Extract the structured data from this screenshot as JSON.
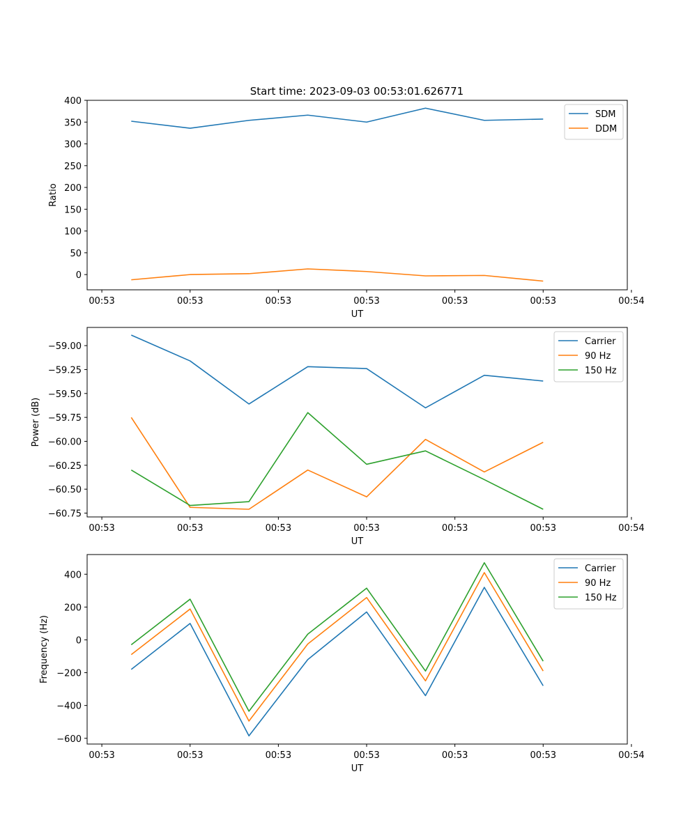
{
  "figure": {
    "title": "Start time: 2023-09-03 00:53:01.626771"
  },
  "chart_data": [
    {
      "type": "line",
      "title": "Start time: 2023-09-03 00:53:01.626771",
      "xlabel": "UT",
      "ylabel": "Ratio",
      "x": [
        1,
        2,
        3,
        4,
        5,
        6,
        7,
        8
      ],
      "xlim": [
        0.25,
        9.43
      ],
      "x_ticks": [
        0.5,
        2.0,
        3.5,
        5.0,
        6.5,
        8.0,
        9.5
      ],
      "x_tick_labels": [
        "00:53",
        "00:53",
        "00:53",
        "00:53",
        "00:53",
        "00:53",
        "00:54"
      ],
      "ylim": [
        -35,
        400
      ],
      "y_ticks": [
        0,
        50,
        100,
        150,
        200,
        250,
        300,
        350,
        400
      ],
      "y_tick_labels": [
        "0",
        "50",
        "100",
        "150",
        "200",
        "250",
        "300",
        "350",
        "400"
      ],
      "legend": "top-right",
      "series": [
        {
          "name": "SDM",
          "color": "#1f77b4",
          "values": [
            352,
            336,
            354,
            366,
            350,
            382,
            354,
            357
          ]
        },
        {
          "name": "DDM",
          "color": "#ff7f0e",
          "values": [
            -12,
            0,
            2,
            13,
            7,
            -3,
            -2,
            -15
          ]
        }
      ]
    },
    {
      "type": "line",
      "title": "",
      "xlabel": "UT",
      "ylabel": "Power (dB)",
      "x": [
        1,
        2,
        3,
        4,
        5,
        6,
        7,
        8
      ],
      "xlim": [
        0.25,
        9.43
      ],
      "x_ticks": [
        0.5,
        2.0,
        3.5,
        5.0,
        6.5,
        8.0,
        9.5
      ],
      "x_tick_labels": [
        "00:53",
        "00:53",
        "00:53",
        "00:53",
        "00:53",
        "00:53",
        "00:54"
      ],
      "ylim": [
        -60.79,
        -58.81
      ],
      "y_ticks": [
        -59.0,
        -59.25,
        -59.5,
        -59.75,
        -60.0,
        -60.25,
        -60.5,
        -60.75
      ],
      "y_tick_labels": [
        "−59.00",
        "−59.25",
        "−59.50",
        "−59.75",
        "−60.00",
        "−60.25",
        "−60.50",
        "−60.75"
      ],
      "legend": "top-right",
      "series": [
        {
          "name": "Carrier",
          "color": "#1f77b4",
          "values": [
            -58.89,
            -59.16,
            -59.61,
            -59.22,
            -59.24,
            -59.65,
            -59.31,
            -59.37
          ]
        },
        {
          "name": "90 Hz",
          "color": "#ff7f0e",
          "values": [
            -59.75,
            -60.69,
            -60.71,
            -60.3,
            -60.58,
            -59.98,
            -60.32,
            -60.01
          ]
        },
        {
          "name": "150 Hz",
          "color": "#2ca02c",
          "values": [
            -60.3,
            -60.67,
            -60.63,
            -59.7,
            -60.24,
            -60.1,
            -60.4,
            -60.71
          ]
        }
      ]
    },
    {
      "type": "line",
      "title": "",
      "xlabel": "UT",
      "ylabel": "Frequency (Hz)",
      "x": [
        1,
        2,
        3,
        4,
        5,
        6,
        7,
        8
      ],
      "xlim": [
        0.25,
        9.43
      ],
      "x_ticks": [
        0.5,
        2.0,
        3.5,
        5.0,
        6.5,
        8.0,
        9.5
      ],
      "x_tick_labels": [
        "00:53",
        "00:53",
        "00:53",
        "00:53",
        "00:53",
        "00:53",
        "00:54"
      ],
      "ylim": [
        -635,
        520
      ],
      "y_ticks": [
        -600,
        -400,
        -200,
        0,
        200,
        400
      ],
      "y_tick_labels": [
        "−600",
        "−400",
        "−200",
        "0",
        "200",
        "400"
      ],
      "legend": "top-right",
      "series": [
        {
          "name": "Carrier",
          "color": "#1f77b4",
          "values": [
            -180,
            100,
            -585,
            -120,
            170,
            -340,
            320,
            -280
          ]
        },
        {
          "name": "90 Hz",
          "color": "#ff7f0e",
          "values": [
            -90,
            188,
            -495,
            -25,
            258,
            -250,
            410,
            -190
          ]
        },
        {
          "name": "150 Hz",
          "color": "#2ca02c",
          "values": [
            -30,
            248,
            -435,
            35,
            315,
            -190,
            470,
            -130
          ]
        }
      ]
    }
  ]
}
